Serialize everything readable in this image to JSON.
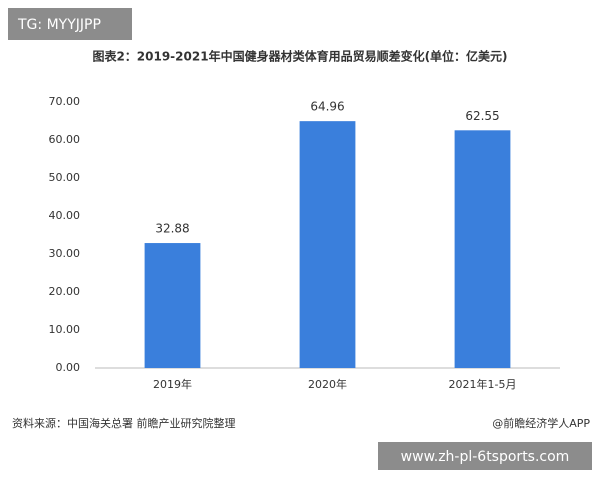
{
  "watermark_top": "TG: MYYJJPP",
  "chart_data": {
    "type": "bar",
    "title": "图表2：2019-2021年中国健身器材类体育用品贸易顺差变化(单位：亿美元)",
    "categories": [
      "2019年",
      "2020年",
      "2021年1-5月"
    ],
    "values": [
      32.88,
      64.96,
      62.55
    ],
    "color": "#3a7fdc",
    "ylim": [
      0,
      70
    ],
    "yticks": [
      {
        "value": 0,
        "label": "0.00"
      },
      {
        "value": 10,
        "label": "10.00"
      },
      {
        "value": 20,
        "label": "20.00"
      },
      {
        "value": 30,
        "label": "30.00"
      },
      {
        "value": 40,
        "label": "40.00"
      },
      {
        "value": 50,
        "label": "50.00"
      },
      {
        "value": 60,
        "label": "60.00"
      },
      {
        "value": 70,
        "label": "70.00"
      }
    ],
    "grid": false
  },
  "source": "资料来源：中国海关总署 前瞻产业研究院整理",
  "credit": "@前瞻经济学人APP",
  "watermark_bottom": "www.zh-pl-6tsports.com"
}
